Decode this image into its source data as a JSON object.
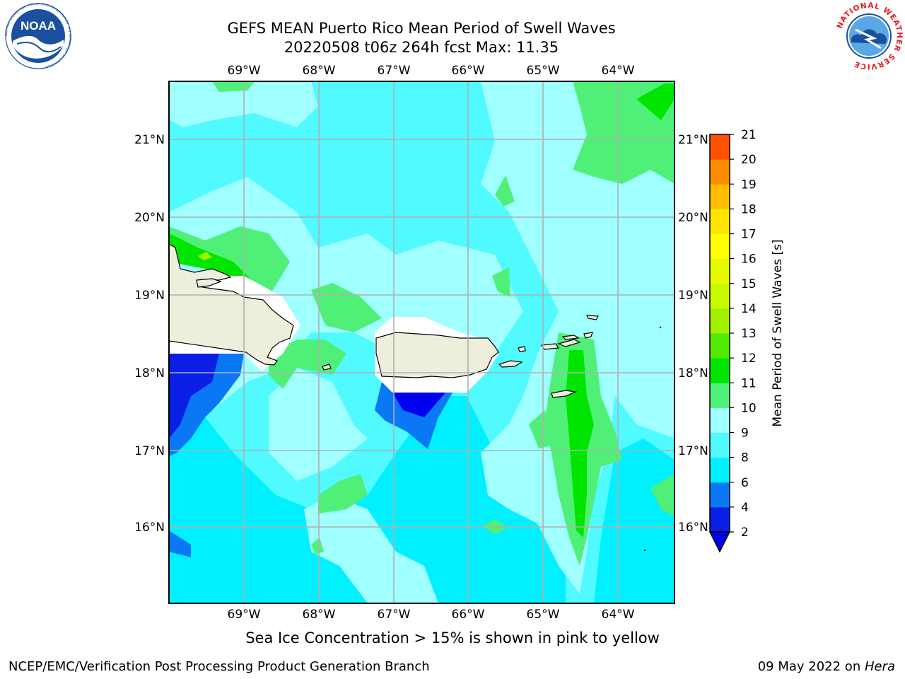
{
  "header": {
    "title_line1": "GEFS MEAN Puerto Rico Mean Period of Swell Waves",
    "title_line2": "20220508 t06z 264h fcst   Max: 11.35"
  },
  "map": {
    "lon_labels": [
      "69°W",
      "68°W",
      "67°W",
      "66°W",
      "65°W",
      "64°W"
    ],
    "lat_labels": [
      "21°N",
      "20°N",
      "19°N",
      "18°N",
      "17°N",
      "16°N"
    ],
    "lon_range": [
      -70.0,
      -63.3
    ],
    "lat_range": [
      15.0,
      21.75
    ],
    "field": "Mean Period of Swell Waves",
    "land_color": "#eeeedd"
  },
  "colorbar": {
    "label": "Mean Period of Swell Waves [s]",
    "ticks": [
      "21",
      "20",
      "19",
      "18",
      "17",
      "16",
      "15",
      "14",
      "13",
      "12",
      "11",
      "10",
      "9",
      "8",
      "6",
      "4",
      "2"
    ],
    "levels": [
      2,
      4,
      6,
      8,
      9,
      10,
      11,
      12,
      13,
      14,
      15,
      16,
      17,
      18,
      19,
      20,
      21
    ],
    "colors": [
      "#0a1ee6",
      "#0a78f5",
      "#00f0ff",
      "#50faff",
      "#a0ffff",
      "#50f078",
      "#00e600",
      "#50eb00",
      "#a0f000",
      "#c8fa00",
      "#e6fa00",
      "#ffff00",
      "#ffe600",
      "#ffbe00",
      "#ff8c00",
      "#ff5000",
      "#ff1e00",
      "#ff0000"
    ],
    "under_color": "#0000f0"
  },
  "caption": "Sea Ice Concentration > 15% is shown in pink to yellow",
  "footer": {
    "left": "NCEP/EMC/Verification Post Processing Product Generation Branch",
    "date": "09 May 2022 on ",
    "host": "Hera"
  },
  "logos": {
    "noaa_text": "NOAA",
    "noaa_ring": "NATIONAL OCEANIC AND ATMOSPHERIC ADMINISTRATION · U.S. DEPARTMENT OF COMMERCE",
    "nws_ring": "NATIONAL WEATHER SERVICE",
    "noaa_color": "#1b4fa0",
    "nws_red": "#e3181f",
    "nws_blue": "#1b4fa0"
  }
}
